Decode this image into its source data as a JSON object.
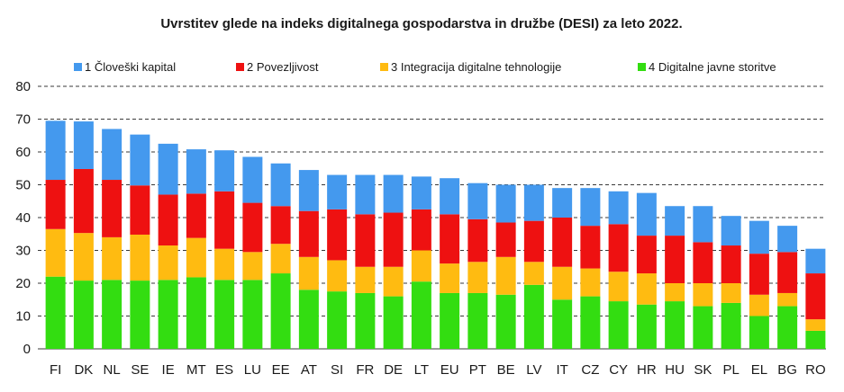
{
  "chart_data": {
    "type": "bar",
    "stacked": true,
    "title": "Uvrstitev glede na indeks digitalnega gospodarstva in družbe (DESI) za leto 2022.",
    "xlabel": "",
    "ylabel": "",
    "ylim": [
      0,
      80
    ],
    "yticks": [
      0,
      10,
      20,
      30,
      40,
      50,
      60,
      70,
      80
    ],
    "grid": true,
    "legend_position": "top",
    "categories": [
      "FI",
      "DK",
      "NL",
      "SE",
      "IE",
      "MT",
      "ES",
      "LU",
      "EE",
      "AT",
      "SI",
      "FR",
      "DE",
      "LT",
      "EU",
      "PT",
      "BE",
      "LV",
      "IT",
      "CZ",
      "CY",
      "HR",
      "HU",
      "SK",
      "PL",
      "EL",
      "BG",
      "RO"
    ],
    "series": [
      {
        "name": "4 Digitalne javne storitve",
        "color": "#33dd11",
        "values": [
          22,
          20.8,
          21,
          20.8,
          21,
          21.8,
          21,
          21,
          23,
          18,
          17.5,
          17,
          16,
          20.5,
          17,
          17,
          16.5,
          19.5,
          15,
          16,
          14.5,
          13.5,
          14.5,
          13,
          14,
          10,
          13,
          5.5
        ]
      },
      {
        "name": "3 Integracija digitalne tehnologije",
        "color": "#ffbb11",
        "values": [
          14.5,
          14.5,
          13,
          14,
          10.5,
          12,
          9.5,
          8.5,
          9,
          10,
          9.5,
          8,
          9,
          9.5,
          9,
          9.5,
          11.5,
          7,
          10,
          8.5,
          9,
          9.5,
          5.5,
          7,
          6,
          6.5,
          4,
          3.5
        ]
      },
      {
        "name": "2 Povezljivost",
        "color": "#ee1111",
        "values": [
          15,
          19.5,
          17.5,
          15,
          15.5,
          13.5,
          17.5,
          15,
          11.5,
          14,
          15.5,
          16,
          16.5,
          12.5,
          15,
          13,
          10.5,
          12.5,
          15,
          13,
          14.5,
          11.5,
          14.5,
          12.5,
          11.5,
          12.5,
          12.5,
          14
        ]
      },
      {
        "name": "1 Človeški kapital",
        "color": "#4499ee",
        "values": [
          18,
          14.5,
          15.5,
          15.5,
          15.5,
          13.5,
          12.5,
          14,
          13,
          12.5,
          10.5,
          12,
          11.5,
          10,
          11,
          11,
          11.5,
          11,
          9,
          11.5,
          10,
          13,
          9,
          11,
          9,
          10,
          8,
          7.5
        ]
      }
    ],
    "legend_order": [
      "1 Človeški kapital",
      "2 Povezljivost",
      "3 Integracija digitalne tehnologije",
      "4 Digitalne javne storitve"
    ]
  }
}
